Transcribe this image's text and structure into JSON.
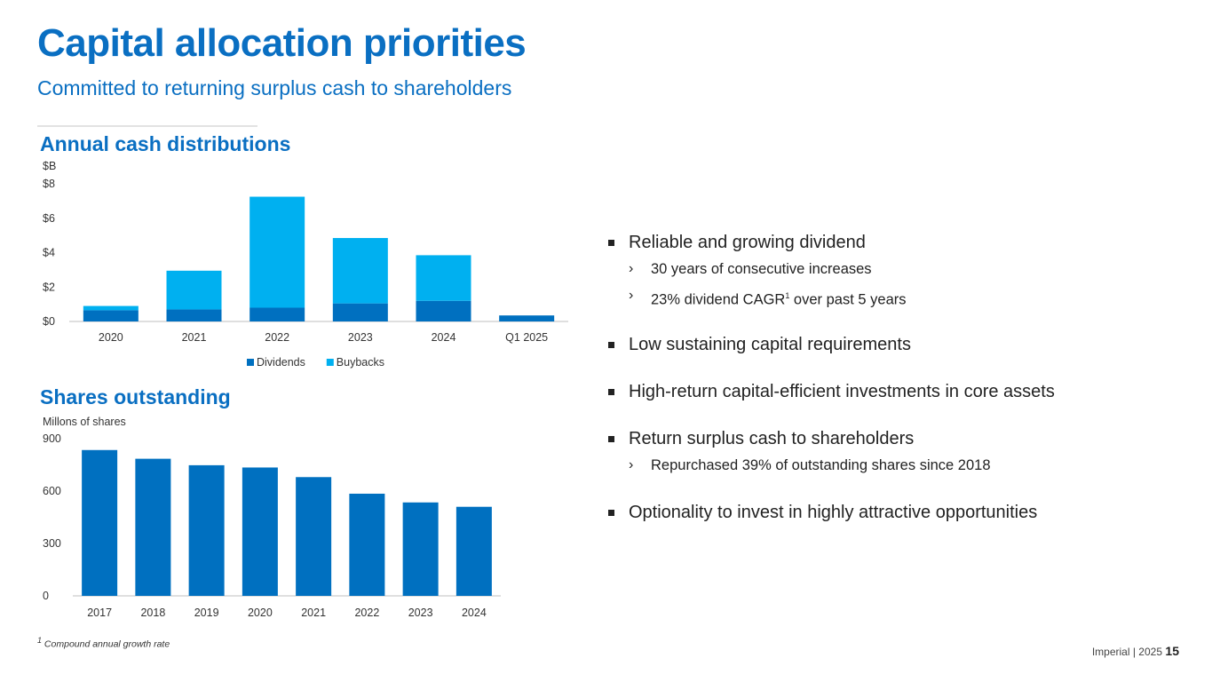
{
  "header": {
    "title": "Capital allocation priorities",
    "subtitle": "Committed to returning surplus cash to shareholders"
  },
  "colors": {
    "brand_blue": "#0a6fc2",
    "dividends": "#0070c0",
    "buybacks": "#00b0f0"
  },
  "cash_section": {
    "title": "Annual cash distributions",
    "unit": "$B"
  },
  "shares_section": {
    "title": "Shares outstanding",
    "unit": "Millons of shares"
  },
  "chart_data": [
    {
      "type": "bar",
      "stacked": true,
      "title": "Annual cash distributions",
      "ylabel": "$B",
      "categories": [
        "2020",
        "2021",
        "2022",
        "2023",
        "2024",
        "Q1 2025"
      ],
      "series": [
        {
          "name": "Dividends",
          "color": "#0070c0",
          "values": [
            0.65,
            0.7,
            0.8,
            1.05,
            1.2,
            0.35
          ]
        },
        {
          "name": "Buybacks",
          "color": "#00b0f0",
          "values": [
            0.25,
            2.25,
            6.45,
            3.8,
            2.65,
            0.0
          ]
        }
      ],
      "ylim": [
        0,
        8
      ],
      "yticks": [
        0,
        2,
        4,
        6,
        8
      ],
      "ytick_labels": [
        "$0",
        "$2",
        "$4",
        "$6",
        "$8"
      ],
      "legend": [
        "Dividends",
        "Buybacks"
      ],
      "legend_position": "bottom",
      "grid": false
    },
    {
      "type": "bar",
      "title": "Shares outstanding",
      "ylabel": "Millons of shares",
      "categories": [
        "2017",
        "2018",
        "2019",
        "2020",
        "2021",
        "2022",
        "2023",
        "2024"
      ],
      "values": [
        835,
        785,
        748,
        735,
        680,
        585,
        535,
        510
      ],
      "color": "#0070c0",
      "ylim": [
        0,
        900
      ],
      "yticks": [
        0,
        300,
        600,
        900
      ],
      "ytick_labels": [
        "0",
        "300",
        "600",
        "900"
      ],
      "grid": false
    }
  ],
  "bullets": {
    "b1": "Reliable and growing dividend",
    "b1_sub1": "30 years of consecutive increases",
    "b1_sub2_pre": "23% dividend CAGR",
    "b1_sub2_sup": "1",
    "b1_sub2_post": " over past 5 years",
    "b2": "Low sustaining capital requirements",
    "b3": "High-return capital-efficient investments in core assets",
    "b4": "Return surplus cash to shareholders",
    "b4_sub1": "Repurchased 39% of outstanding shares since 2018",
    "b5": "Optionality to invest in highly attractive opportunities",
    "chevron": "›"
  },
  "footnote": {
    "marker": "1",
    "text": " Compound annual growth rate"
  },
  "footer": {
    "text": "Imperial  |  2025",
    "page": "15"
  }
}
